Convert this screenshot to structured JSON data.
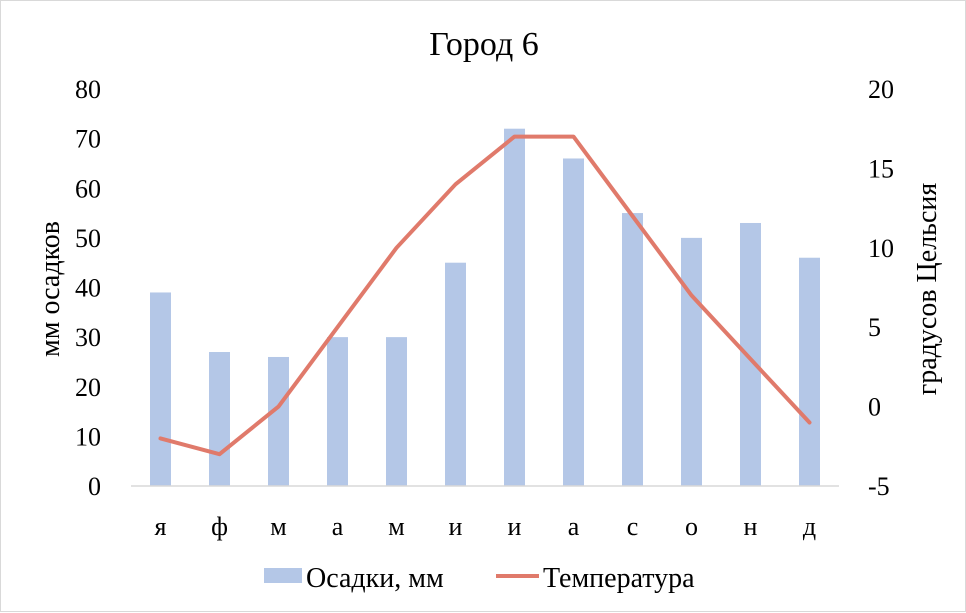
{
  "chart_data": {
    "type": "bar",
    "title": "Город 6",
    "categories": [
      "я",
      "ф",
      "м",
      "а",
      "м",
      "и",
      "и",
      "а",
      "с",
      "о",
      "н",
      "д"
    ],
    "series": [
      {
        "name": "Осадки, мм",
        "type": "bar",
        "axis": "left",
        "color": "#b4c7e7",
        "values": [
          39,
          27,
          26,
          30,
          30,
          45,
          72,
          66,
          55,
          50,
          53,
          46
        ]
      },
      {
        "name": "Температура",
        "type": "line",
        "axis": "right",
        "color": "#e07a6b",
        "values": [
          -2,
          -3,
          0,
          5,
          10,
          14,
          17,
          17,
          12,
          7,
          3,
          -1
        ]
      }
    ],
    "ylabel": "мм осадков",
    "y2label": "градусов Цельсия",
    "ylim": [
      0,
      80
    ],
    "yticks": [
      0,
      10,
      20,
      30,
      40,
      50,
      60,
      70,
      80
    ],
    "y2lim": [
      -5,
      20
    ],
    "y2ticks": [
      -5,
      0,
      5,
      10,
      15,
      20
    ],
    "grid": false,
    "legend": "bottom"
  }
}
